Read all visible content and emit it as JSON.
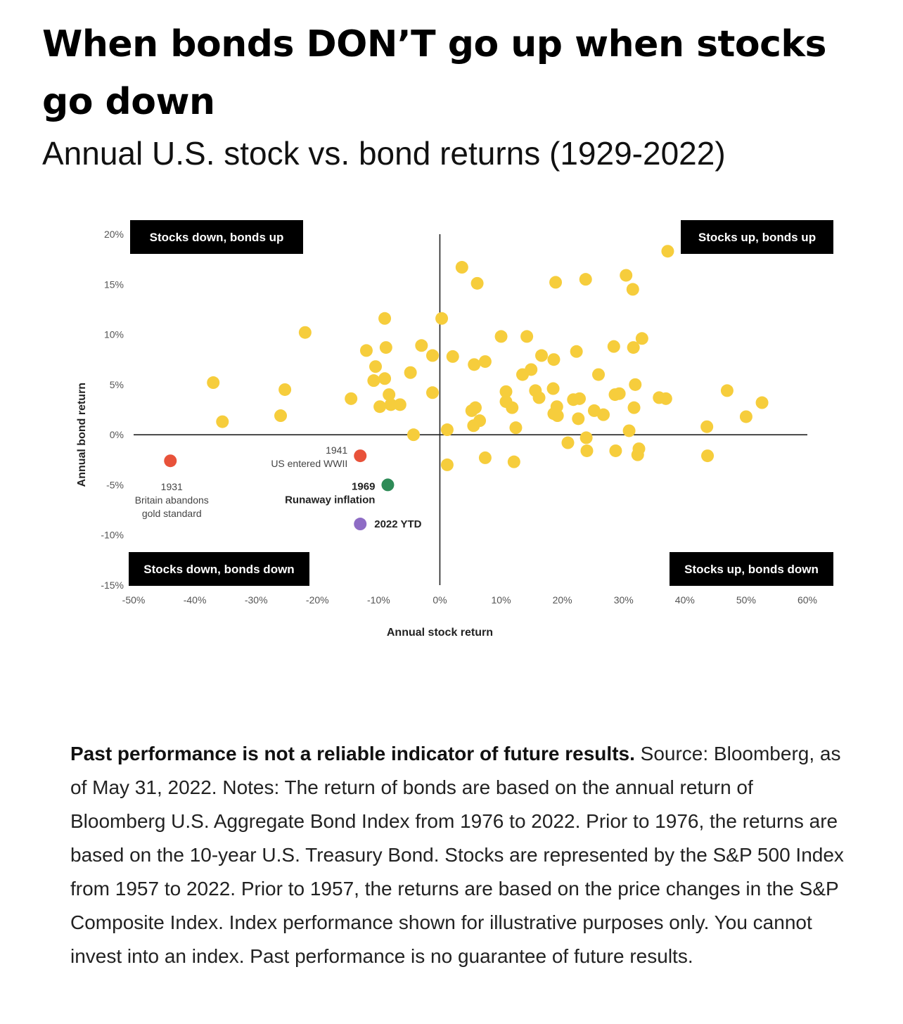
{
  "header": {
    "title": "When bonds DON’T go up when stocks go down",
    "subtitle": "Annual U.S. stock vs. bond returns (1929-2022)"
  },
  "chart_data": {
    "type": "scatter",
    "xlabel": "Annual stock return",
    "ylabel": "Annual bond return",
    "xlim": [
      -50,
      60
    ],
    "ylim": [
      -15,
      20
    ],
    "x_ticks": [
      "-50%",
      "-40%",
      "-30%",
      "-20%",
      "-10%",
      "0%",
      "10%",
      "20%",
      "30%",
      "40%",
      "50%",
      "60%"
    ],
    "y_ticks": [
      "20%",
      "15%",
      "10%",
      "5%",
      "0%",
      "-5%",
      "-10%",
      "-15%"
    ],
    "quadrant_labels": {
      "top_left": "Stocks down, bonds up",
      "top_right": "Stocks up, bonds up",
      "bottom_left": "Stocks down, bonds down",
      "bottom_right": "Stocks up, bonds down"
    },
    "colors": {
      "points": "#f6cd3c",
      "highlight_red": "#e8523a",
      "highlight_green": "#2e8b57",
      "highlight_purple": "#8e6cc5",
      "quadrant_box": "#000000",
      "axis": "#222222"
    },
    "highlights": [
      {
        "x": -44,
        "y": -2.6,
        "color": "#e8523a",
        "label_lines": [
          "1931",
          "Britain abandons",
          "gold standard"
        ],
        "bold_lines": 0,
        "label_pos": "below-right"
      },
      {
        "x": -13,
        "y": -2.1,
        "color": "#e8523a",
        "label_lines": [
          "1941",
          "US entered WWII"
        ],
        "bold_lines": 0,
        "label_pos": "left"
      },
      {
        "x": -8.5,
        "y": -5.0,
        "color": "#2e8b57",
        "label_lines": [
          "1969",
          "Runaway inflation"
        ],
        "bold_lines": 2,
        "label_pos": "left"
      },
      {
        "x": -13,
        "y": -8.9,
        "color": "#8e6cc5",
        "label_lines": [
          "2022 YTD"
        ],
        "bold_lines": 1,
        "label_pos": "right"
      }
    ],
    "points": [
      [
        -37,
        5.2
      ],
      [
        -35.5,
        1.3
      ],
      [
        -26,
        1.9
      ],
      [
        -25.3,
        4.5
      ],
      [
        -22,
        10.2
      ],
      [
        -14.5,
        3.6
      ],
      [
        -12,
        8.4
      ],
      [
        -10.5,
        6.8
      ],
      [
        -10.8,
        5.4
      ],
      [
        -9.0,
        11.6
      ],
      [
        -8.8,
        8.7
      ],
      [
        -9.0,
        5.6
      ],
      [
        -8.3,
        4.0
      ],
      [
        -9.8,
        2.8
      ],
      [
        -8.0,
        3.0
      ],
      [
        -6.5,
        3.0
      ],
      [
        -4.8,
        6.2
      ],
      [
        -4.3,
        0.0
      ],
      [
        -3.0,
        8.9
      ],
      [
        -1.2,
        7.9
      ],
      [
        -1.2,
        4.2
      ],
      [
        0.3,
        11.6
      ],
      [
        1.2,
        0.5
      ],
      [
        1.2,
        -3.0
      ],
      [
        2.1,
        7.8
      ],
      [
        3.6,
        16.7
      ],
      [
        5.2,
        2.4
      ],
      [
        5.5,
        0.9
      ],
      [
        5.6,
        7.0
      ],
      [
        5.8,
        2.7
      ],
      [
        6.1,
        15.1
      ],
      [
        6.5,
        1.4
      ],
      [
        7.4,
        7.3
      ],
      [
        7.4,
        -2.3
      ],
      [
        10.0,
        9.8
      ],
      [
        10.8,
        4.3
      ],
      [
        10.8,
        3.3
      ],
      [
        11.8,
        2.7
      ],
      [
        12.1,
        -2.7
      ],
      [
        12.4,
        0.7
      ],
      [
        13.5,
        6.0
      ],
      [
        14.2,
        9.8
      ],
      [
        14.9,
        6.5
      ],
      [
        15.6,
        4.4
      ],
      [
        16.2,
        3.7
      ],
      [
        16.6,
        7.9
      ],
      [
        18.5,
        4.6
      ],
      [
        18.6,
        7.5
      ],
      [
        18.6,
        2.1
      ],
      [
        18.9,
        15.2
      ],
      [
        19.1,
        2.8
      ],
      [
        19.2,
        1.9
      ],
      [
        20.9,
        -0.8
      ],
      [
        21.8,
        3.5
      ],
      [
        22.3,
        8.3
      ],
      [
        22.6,
        1.6
      ],
      [
        22.8,
        3.6
      ],
      [
        23.8,
        15.5
      ],
      [
        23.9,
        -0.3
      ],
      [
        24.0,
        -1.6
      ],
      [
        25.2,
        2.4
      ],
      [
        25.9,
        6.0
      ],
      [
        26.7,
        2.0
      ],
      [
        28.4,
        8.8
      ],
      [
        28.6,
        4.0
      ],
      [
        28.7,
        -1.6
      ],
      [
        29.3,
        4.1
      ],
      [
        30.4,
        15.9
      ],
      [
        30.9,
        0.4
      ],
      [
        31.5,
        14.5
      ],
      [
        31.6,
        8.7
      ],
      [
        31.7,
        2.7
      ],
      [
        31.9,
        5.0
      ],
      [
        32.3,
        -2.0
      ],
      [
        32.5,
        -1.4
      ],
      [
        33.0,
        9.6
      ],
      [
        35.8,
        3.7
      ],
      [
        36.9,
        3.6
      ],
      [
        37.2,
        18.3
      ],
      [
        43.6,
        0.8
      ],
      [
        43.7,
        -2.1
      ],
      [
        46.9,
        4.4
      ],
      [
        50.0,
        1.8
      ],
      [
        52.6,
        3.2
      ]
    ]
  },
  "footnote": {
    "bold": "Past performance is not a reliable indicator of future results.",
    "text": " Source: Bloomberg, as of May 31, 2022. Notes: The return of bonds are based on the annual return of Bloomberg U.S. Aggregate Bond Index from 1976 to 2022. Prior to 1976, the returns are based on the 10-year U.S. Treasury Bond. Stocks are represented by the S&P 500 Index from 1957 to 2022. Prior to 1957, the returns are based on the price changes in the S&P Composite Index. Index performance shown for illustrative purposes only. You cannot invest into an index. Past performance is no guarantee of future results."
  }
}
